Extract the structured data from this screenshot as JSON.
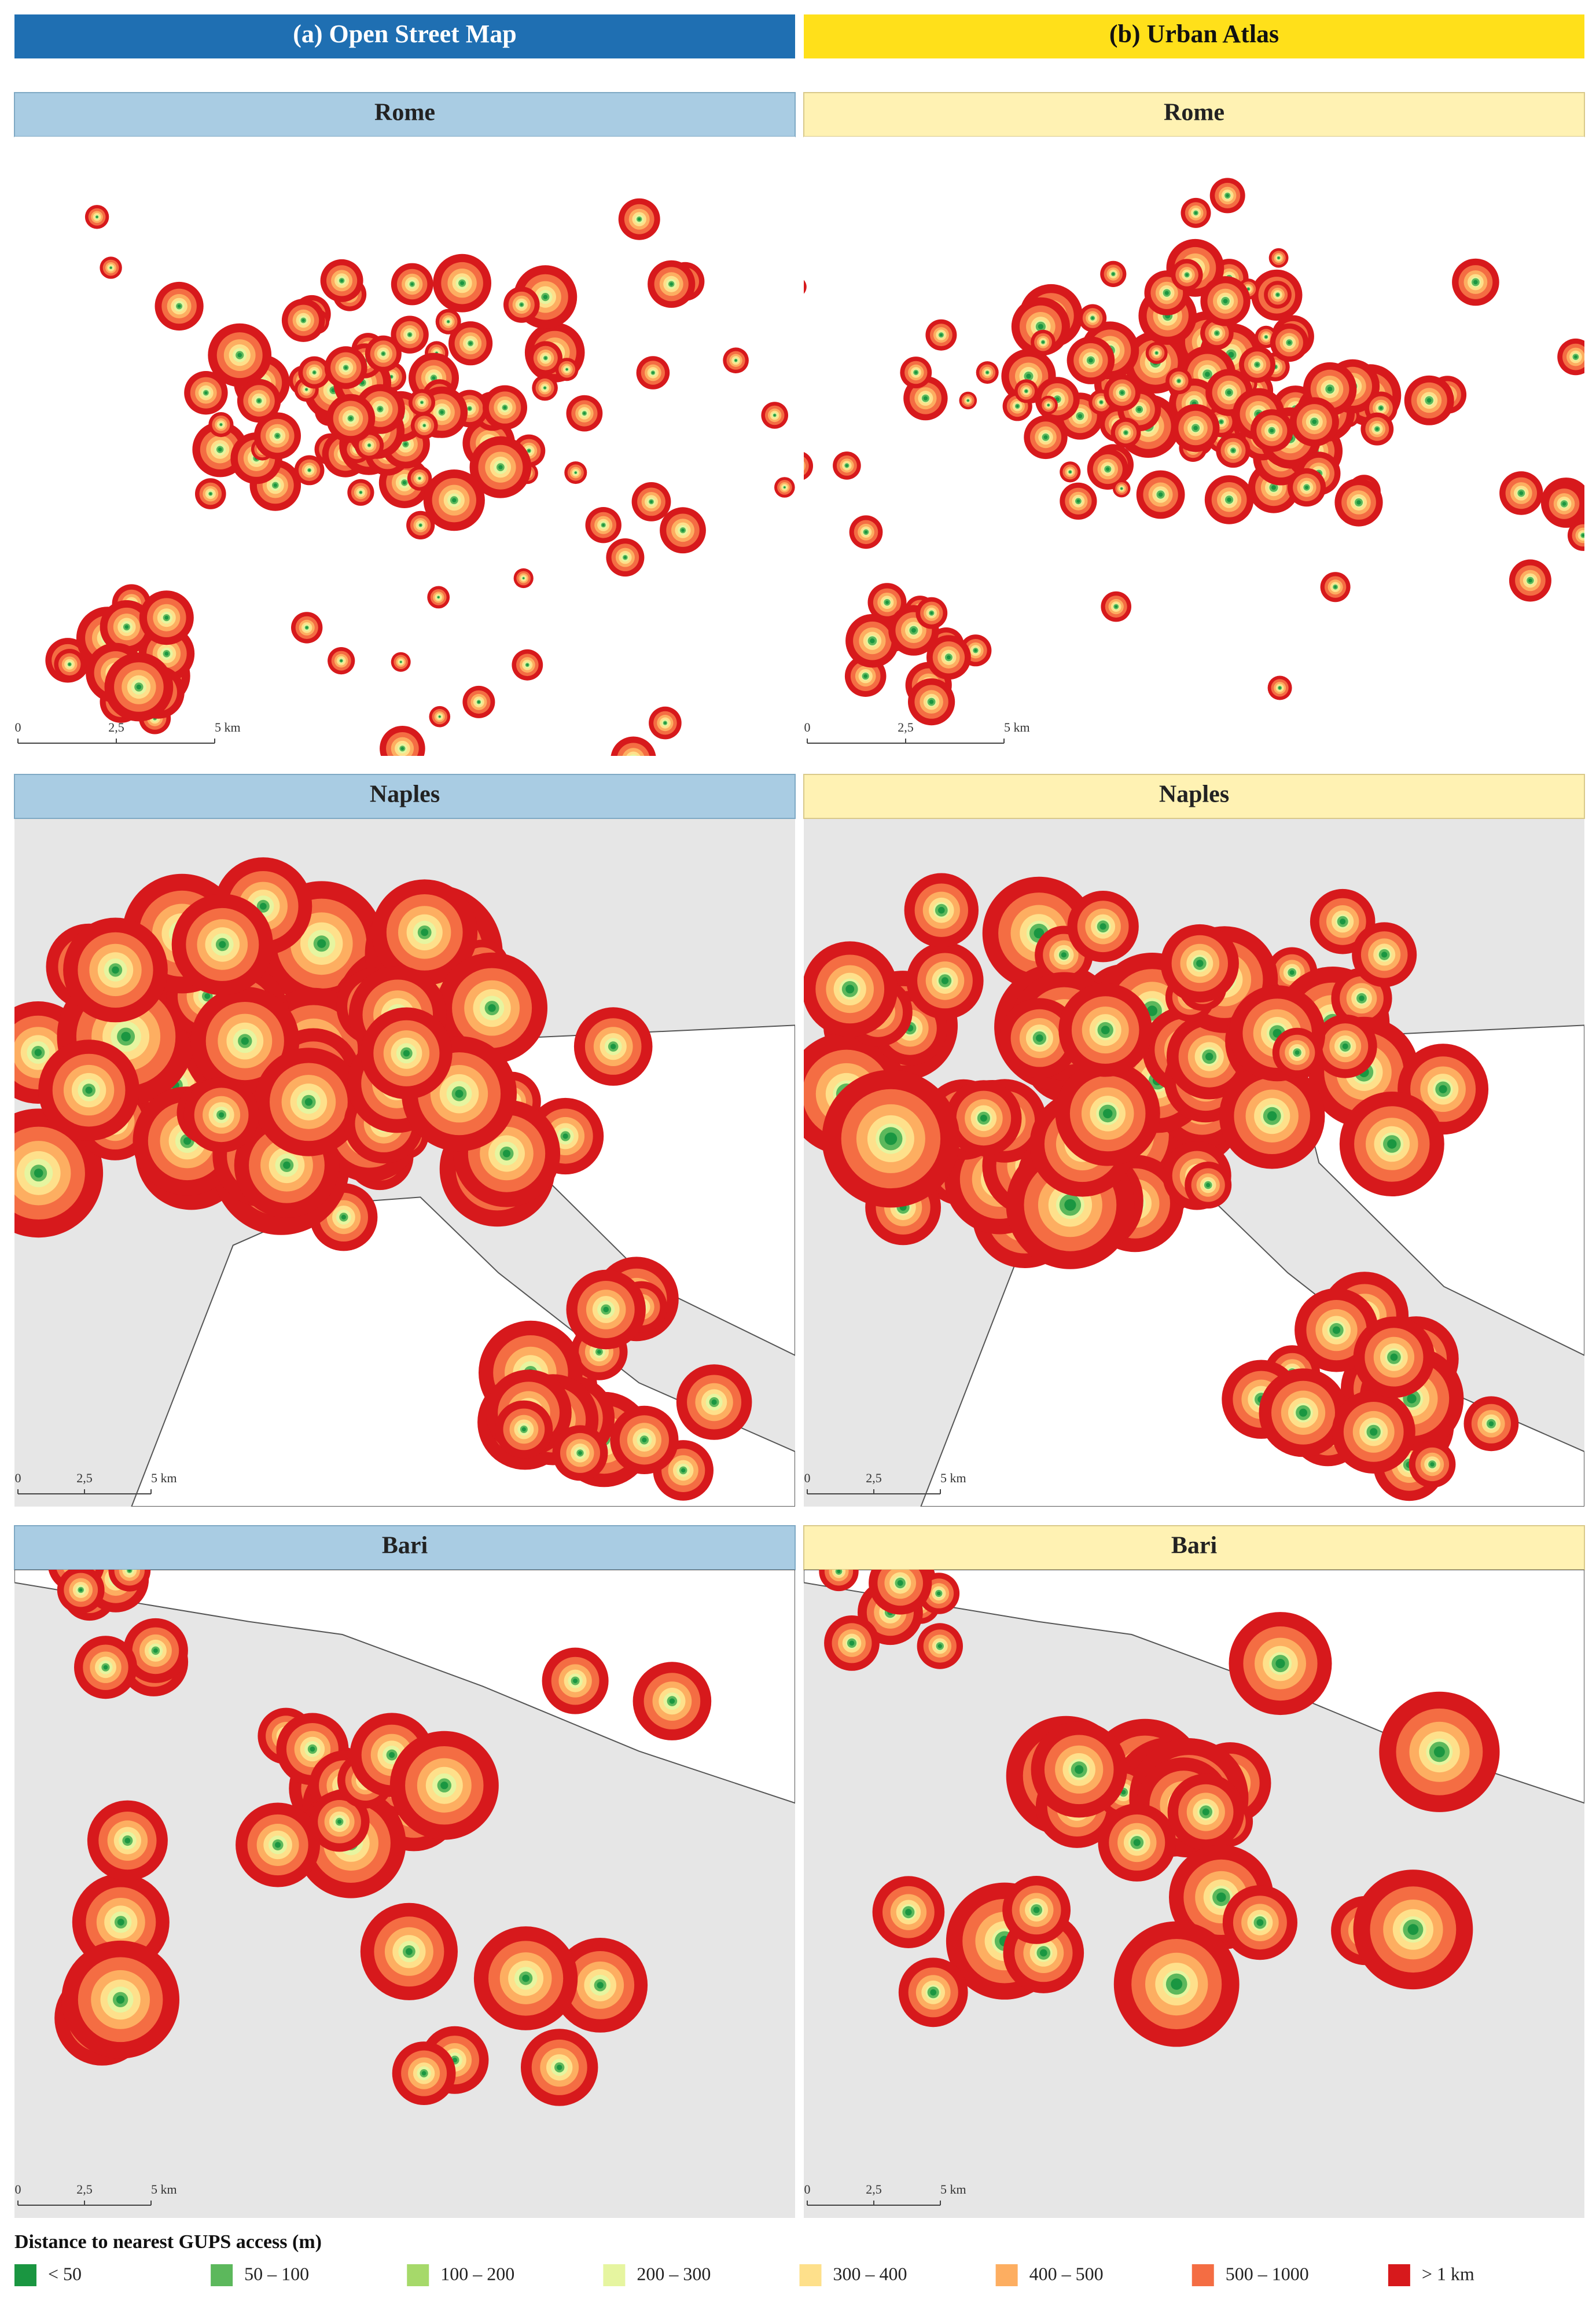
{
  "columns": [
    {
      "header": "(a) Open Street Map",
      "panels": [
        {
          "title": "Rome",
          "scale": [
            "0",
            "2,5",
            "5 km"
          ]
        },
        {
          "title": "Naples",
          "scale": [
            "0",
            "2,5",
            "5 km"
          ]
        },
        {
          "title": "Bari",
          "scale": [
            "0",
            "2,5",
            "5 km"
          ]
        }
      ]
    },
    {
      "header": "(b) Urban Atlas",
      "panels": [
        {
          "title": "Rome",
          "scale": [
            "0",
            "2,5",
            "5 km"
          ]
        },
        {
          "title": "Naples",
          "scale": [
            "0",
            "2,5",
            "5 km"
          ]
        },
        {
          "title": "Bari",
          "scale": [
            "0",
            "2,5",
            "5 km"
          ]
        }
      ]
    }
  ],
  "legend": {
    "title": "Distance to nearest GUPS access (m)",
    "items": [
      {
        "label": "< 50",
        "color": "#1a9641"
      },
      {
        "label": "50 – 100",
        "color": "#5cb85c"
      },
      {
        "label": "100 – 200",
        "color": "#a6d96a"
      },
      {
        "label": "200 – 300",
        "color": "#e6f5a0"
      },
      {
        "label": "300 – 400",
        "color": "#fee08b"
      },
      {
        "label": "400 – 500",
        "color": "#fdae61"
      },
      {
        "label": "500 – 1000",
        "color": "#f46d43"
      },
      {
        "label": "> 1 km",
        "color": "#d7191c"
      }
    ]
  }
}
